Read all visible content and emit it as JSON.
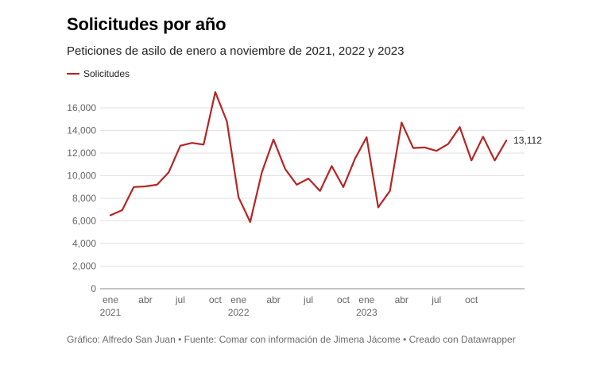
{
  "title": "Solicitudes por año",
  "subtitle": "Peticiones de asilo de enero a noviembre de 2021, 2022 y 2023",
  "footer": "Gráfico: Alfredo San Juan • Fuente: Comar con información de Jimena Jácome • Creado con Datawrapper",
  "colors": {
    "series": "#b52525",
    "grid": "#e2e2e2",
    "axis": "#888888"
  },
  "chart_data": {
    "type": "line",
    "ylim": [
      0,
      16000
    ],
    "yticks": [
      0,
      2000,
      4000,
      6000,
      8000,
      10000,
      12000,
      14000,
      16000
    ],
    "ytick_labels": [
      "0",
      "2,000",
      "4,000",
      "6,000",
      "8,000",
      "10,000",
      "12,000",
      "14,000",
      "16,000"
    ],
    "x_ticks": [
      {
        "index": 0,
        "label": "ene",
        "year": "2021"
      },
      {
        "index": 3,
        "label": "abr",
        "year": ""
      },
      {
        "index": 6,
        "label": "jul",
        "year": ""
      },
      {
        "index": 9,
        "label": "oct",
        "year": ""
      },
      {
        "index": 11,
        "label": "ene",
        "year": "2022"
      },
      {
        "index": 14,
        "label": "abr",
        "year": ""
      },
      {
        "index": 17,
        "label": "jul",
        "year": ""
      },
      {
        "index": 20,
        "label": "oct",
        "year": ""
      },
      {
        "index": 22,
        "label": "ene",
        "year": "2023"
      },
      {
        "index": 25,
        "label": "abr",
        "year": ""
      },
      {
        "index": 28,
        "label": "jul",
        "year": ""
      },
      {
        "index": 31,
        "label": "oct",
        "year": ""
      }
    ],
    "series": [
      {
        "name": "Solicitudes",
        "values": [
          6500,
          6950,
          9000,
          9050,
          9200,
          10300,
          12650,
          12900,
          12750,
          17400,
          14800,
          8100,
          5900,
          10300,
          13200,
          10600,
          9200,
          9750,
          8650,
          10850,
          9000,
          11500,
          13400,
          7200,
          8650,
          14700,
          12450,
          12500,
          12200,
          12800,
          14300,
          11350,
          13450,
          11350,
          13112
        ],
        "end_label": "13,112"
      }
    ],
    "grid": true,
    "legend_position": "top-left"
  }
}
